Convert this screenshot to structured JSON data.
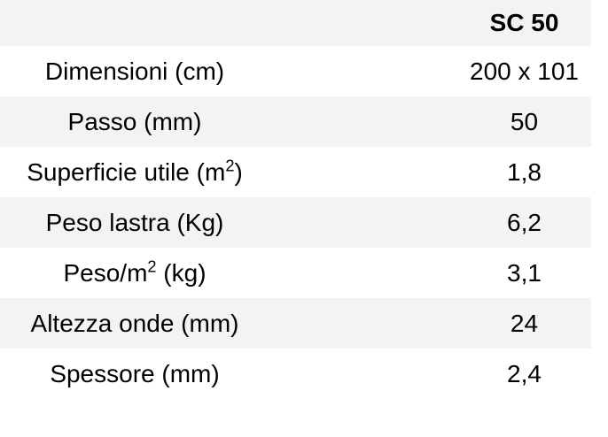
{
  "table": {
    "header": {
      "label_column": "",
      "value_column": "SC 50"
    },
    "rows": [
      {
        "label_pre": "Dimensioni (cm)",
        "label_sup": "",
        "label_post": "",
        "value": "200 x 101"
      },
      {
        "label_pre": "Passo (mm)",
        "label_sup": "",
        "label_post": "",
        "value": "50"
      },
      {
        "label_pre": "Superficie utile (m",
        "label_sup": "2",
        "label_post": ")",
        "value": "1,8"
      },
      {
        "label_pre": "Peso lastra (Kg)",
        "label_sup": "",
        "label_post": "",
        "value": "6,2"
      },
      {
        "label_pre": "Peso/m",
        "label_sup": "2",
        "label_post": " (kg)",
        "value": "3,1"
      },
      {
        "label_pre": "Altezza onde (mm)",
        "label_sup": "",
        "label_post": "",
        "value": "24"
      },
      {
        "label_pre": "Spessore (mm)",
        "label_sup": "",
        "label_post": "",
        "value": "2,4"
      }
    ],
    "colors": {
      "stripe": "#f2f3f2",
      "text": "#000000",
      "background": "#ffffff"
    }
  },
  "chart_data": {
    "type": "table",
    "title": "",
    "columns": [
      "",
      "SC 50"
    ],
    "rows": [
      [
        "Dimensioni (cm)",
        "200 x 101"
      ],
      [
        "Passo (mm)",
        "50"
      ],
      [
        "Superficie utile (m²)",
        "1,8"
      ],
      [
        "Peso lastra (Kg)",
        "6,2"
      ],
      [
        "Peso/m² (kg)",
        "3,1"
      ],
      [
        "Altezza onde (mm)",
        "24"
      ],
      [
        "Spessore (mm)",
        "2,4"
      ]
    ]
  }
}
